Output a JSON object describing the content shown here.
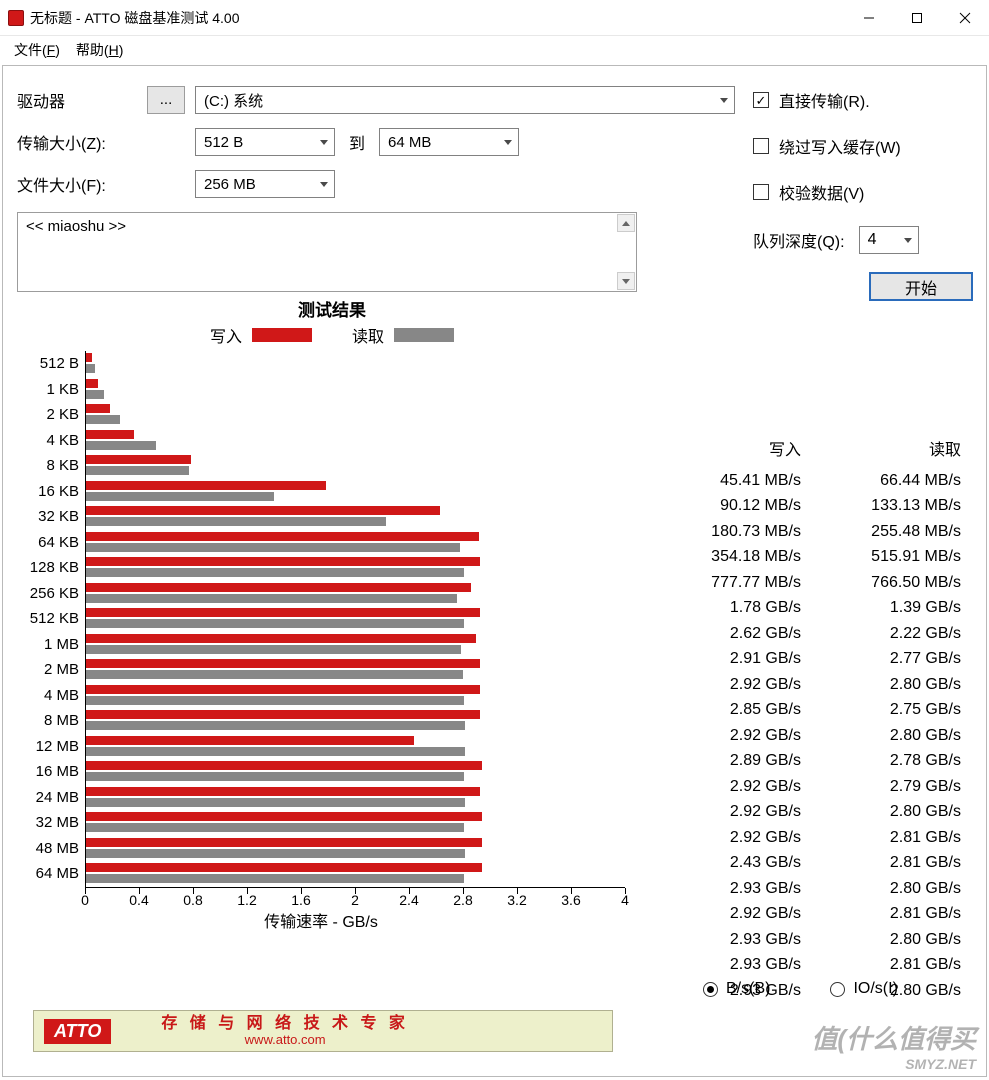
{
  "window": {
    "title": "无标题 - ATTO 磁盘基准测试 4.00"
  },
  "menu": {
    "file": "文件(F)",
    "help": "帮助(H)"
  },
  "form": {
    "drive_label": "驱动器",
    "drive_btn": "...",
    "drive_value": "(C:) 系统",
    "xfer_label": "传输大小(Z):",
    "xfer_from": "512 B",
    "xfer_to_lbl": "到",
    "xfer_to": "64 MB",
    "file_label": "文件大小(F):",
    "file_value": "256 MB"
  },
  "opts": {
    "direct": "直接传输(R).",
    "bypass": "绕过写入缓存(W)",
    "verify": "校验数据(V)",
    "qd_label": "队列深度(Q):",
    "qd_value": "4",
    "start": "开始"
  },
  "desc": {
    "text": "<< miaoshu >>"
  },
  "chart": {
    "title": "测试结果",
    "write_label": "写入",
    "read_label": "读取",
    "xlabel": "传输速率 - GB/s",
    "xmax": 4.0,
    "xticks": [
      "0",
      "0.4",
      "0.8",
      "1.2",
      "1.6",
      "2",
      "2.4",
      "2.8",
      "3.2",
      "3.6",
      "4"
    ],
    "write_color": "#d01818",
    "read_color": "#878787",
    "rows": [
      {
        "size": "512 B",
        "w": 0.04541,
        "r": 0.06644,
        "ws": "45.41 MB/s",
        "rs": "66.44 MB/s"
      },
      {
        "size": "1 KB",
        "w": 0.09012,
        "r": 0.13313,
        "ws": "90.12 MB/s",
        "rs": "133.13 MB/s"
      },
      {
        "size": "2 KB",
        "w": 0.18073,
        "r": 0.25548,
        "ws": "180.73 MB/s",
        "rs": "255.48 MB/s"
      },
      {
        "size": "4 KB",
        "w": 0.35418,
        "r": 0.51591,
        "ws": "354.18 MB/s",
        "rs": "515.91 MB/s"
      },
      {
        "size": "8 KB",
        "w": 0.77777,
        "r": 0.7665,
        "ws": "777.77 MB/s",
        "rs": "766.50 MB/s"
      },
      {
        "size": "16 KB",
        "w": 1.78,
        "r": 1.39,
        "ws": "1.78 GB/s",
        "rs": "1.39 GB/s"
      },
      {
        "size": "32 KB",
        "w": 2.62,
        "r": 2.22,
        "ws": "2.62 GB/s",
        "rs": "2.22 GB/s"
      },
      {
        "size": "64 KB",
        "w": 2.91,
        "r": 2.77,
        "ws": "2.91 GB/s",
        "rs": "2.77 GB/s"
      },
      {
        "size": "128 KB",
        "w": 2.92,
        "r": 2.8,
        "ws": "2.92 GB/s",
        "rs": "2.80 GB/s"
      },
      {
        "size": "256 KB",
        "w": 2.85,
        "r": 2.75,
        "ws": "2.85 GB/s",
        "rs": "2.75 GB/s"
      },
      {
        "size": "512 KB",
        "w": 2.92,
        "r": 2.8,
        "ws": "2.92 GB/s",
        "rs": "2.80 GB/s"
      },
      {
        "size": "1 MB",
        "w": 2.89,
        "r": 2.78,
        "ws": "2.89 GB/s",
        "rs": "2.78 GB/s"
      },
      {
        "size": "2 MB",
        "w": 2.92,
        "r": 2.79,
        "ws": "2.92 GB/s",
        "rs": "2.79 GB/s"
      },
      {
        "size": "4 MB",
        "w": 2.92,
        "r": 2.8,
        "ws": "2.92 GB/s",
        "rs": "2.80 GB/s"
      },
      {
        "size": "8 MB",
        "w": 2.92,
        "r": 2.81,
        "ws": "2.92 GB/s",
        "rs": "2.81 GB/s"
      },
      {
        "size": "12 MB",
        "w": 2.43,
        "r": 2.81,
        "ws": "2.43 GB/s",
        "rs": "2.81 GB/s"
      },
      {
        "size": "16 MB",
        "w": 2.93,
        "r": 2.8,
        "ws": "2.93 GB/s",
        "rs": "2.80 GB/s"
      },
      {
        "size": "24 MB",
        "w": 2.92,
        "r": 2.81,
        "ws": "2.92 GB/s",
        "rs": "2.81 GB/s"
      },
      {
        "size": "32 MB",
        "w": 2.93,
        "r": 2.8,
        "ws": "2.93 GB/s",
        "rs": "2.80 GB/s"
      },
      {
        "size": "48 MB",
        "w": 2.93,
        "r": 2.81,
        "ws": "2.93 GB/s",
        "rs": "2.81 GB/s"
      },
      {
        "size": "64 MB",
        "w": 2.93,
        "r": 2.8,
        "ws": "2.93 GB/s",
        "rs": "2.80 GB/s"
      }
    ]
  },
  "radios": {
    "bs": "B/s(B)",
    "ios": "IO/s(I)"
  },
  "footer": {
    "logo": "ATTO",
    "slogan": "存 储 与 网 络 技 术 专 家",
    "url": "www.atto.com"
  },
  "watermark": {
    "main": "值(什么值得买",
    "sub": "SMYZ.NET"
  }
}
